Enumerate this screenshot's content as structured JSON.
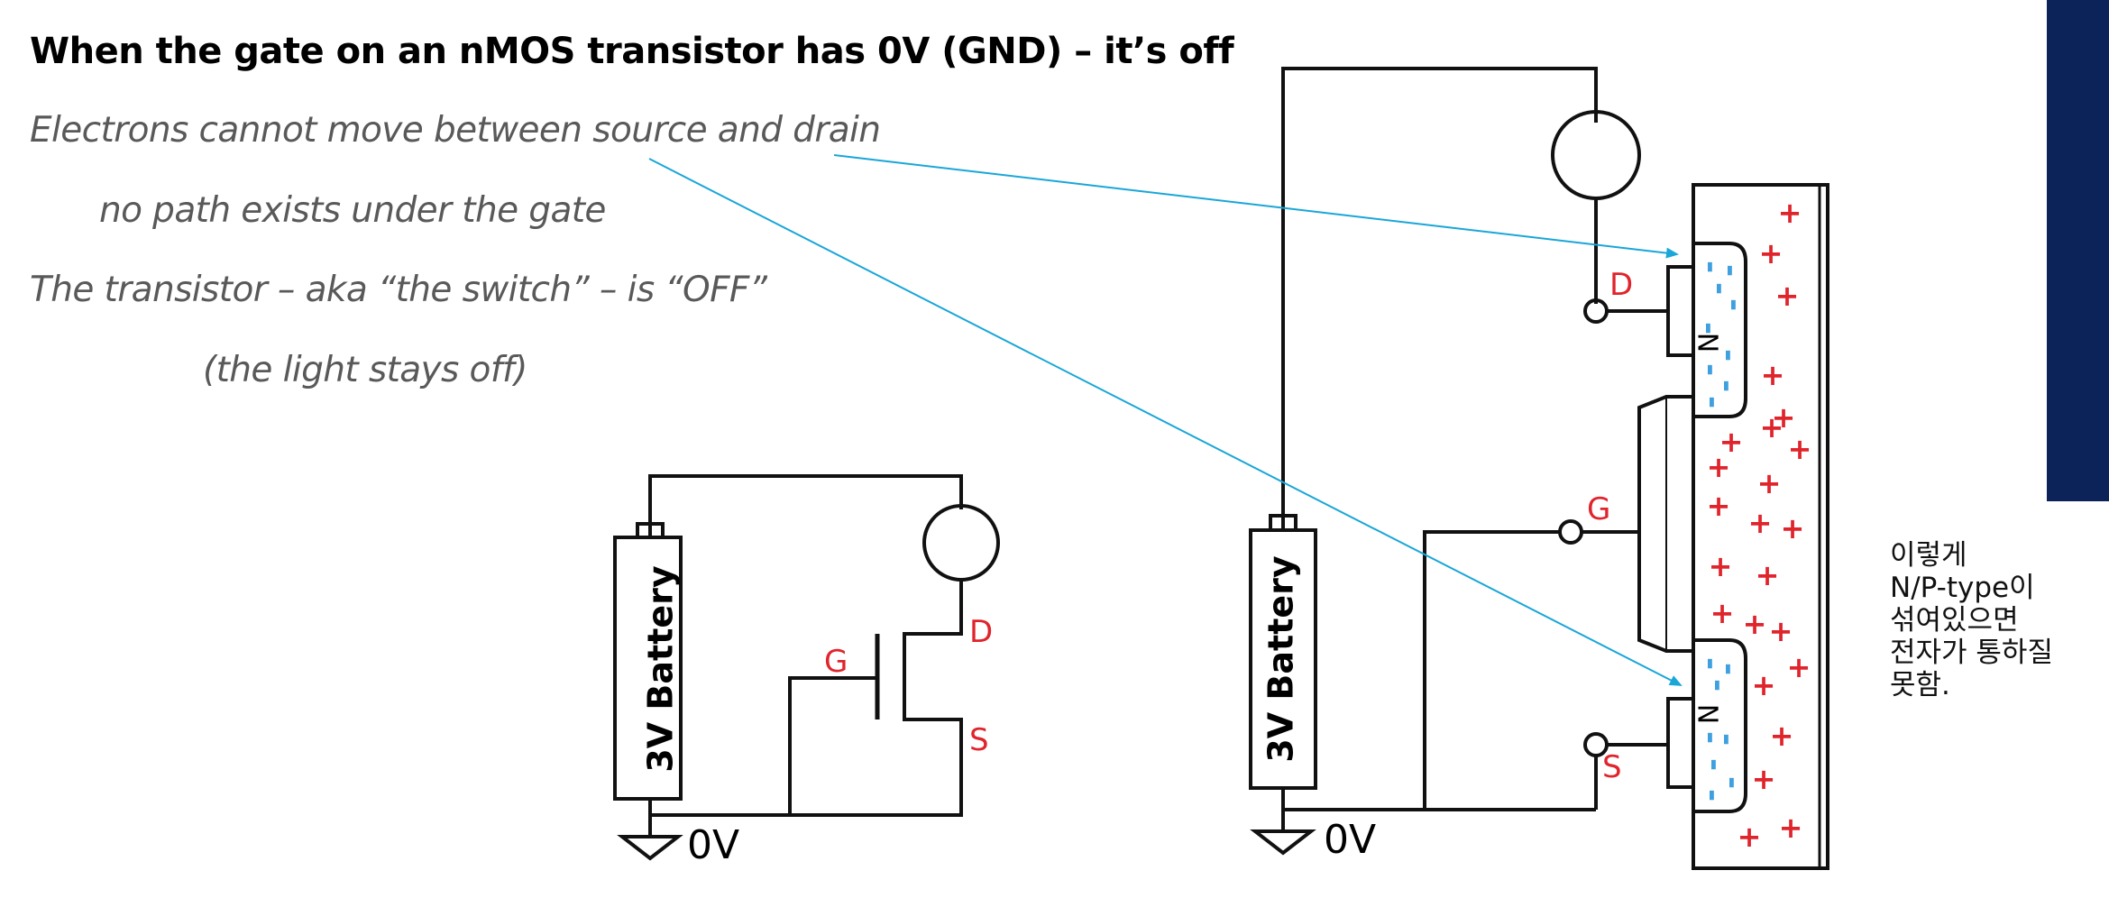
{
  "slide": {
    "title": "When the gate on an nMOS transistor has 0V (GND) – it’s off",
    "bullets": [
      "Electrons cannot move between source and drain",
      "no path exists under the gate",
      "The transistor – aka “the switch” –  is “OFF”",
      "(the light stays off)"
    ],
    "accent_color": "#0b2358"
  },
  "schematic": {
    "battery_label": "3V  Battery",
    "ground_label": "0V",
    "gate_label": "G",
    "drain_label": "D",
    "source_label": "S"
  },
  "device": {
    "battery_label": "3V  Battery",
    "ground_label": "0V",
    "gate_label": "G",
    "drain_label": "D",
    "source_label": "S",
    "n_region_label": "N",
    "plus_sign": "+",
    "minus_sign": "-",
    "plus_color": "#e0242c",
    "electron_color": "#3fa0e0",
    "arrow_color": "#1aa6d8"
  },
  "note": {
    "lines": [
      "이렇게",
      "N/P-type이",
      "섞여있으면",
      "전자가 통하질",
      "못함."
    ]
  }
}
